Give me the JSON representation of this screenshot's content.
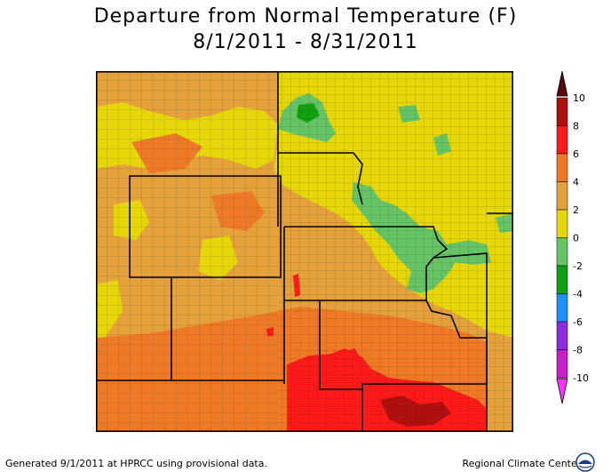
{
  "title": "Departure from Normal Temperature (F)",
  "date_range": "8/1/2011 - 8/31/2011",
  "legend": {
    "labels": [
      "10",
      "8",
      "6",
      "4",
      "2",
      "0",
      "-2",
      "-4",
      "-6",
      "-8",
      "-10"
    ],
    "bins": [
      {
        "range": "8 to 10",
        "color": "#b01010"
      },
      {
        "range": "6 to 8",
        "color": "#ff1a1a"
      },
      {
        "range": "4 to 6",
        "color": "#ee7a28"
      },
      {
        "range": "2 to 4",
        "color": "#e5a23c"
      },
      {
        "range": "0 to 2",
        "color": "#e6d70a"
      },
      {
        "range": "-2 to 0",
        "color": "#66c466"
      },
      {
        "range": "-4 to -2",
        "color": "#10a010"
      },
      {
        "range": "-6 to -4",
        "color": "#1e90ff"
      },
      {
        "range": "-8 to -6",
        "color": "#8a2be2"
      },
      {
        "range": "-10 to -8",
        "color": "#c71ec7"
      }
    ],
    "top_arrow_color": "#5a0a0a",
    "bottom_arrow_color": "#ff33ff"
  },
  "footer_left": "Generated 9/1/2011 at HPRCC using provisional data.",
  "footer_right": "Regional Climate Centers",
  "logo_icon": "noaa-logo-icon"
}
